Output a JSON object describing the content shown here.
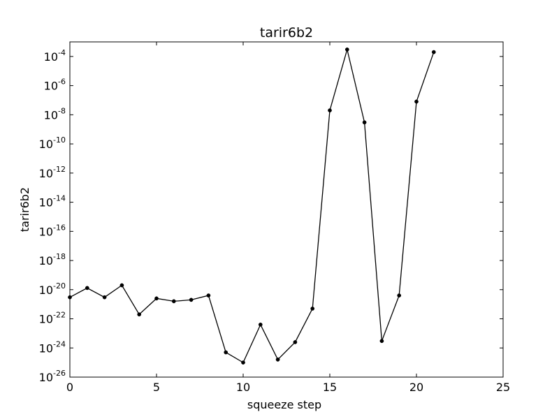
{
  "chart_data": {
    "type": "line",
    "title": "tarir6b2",
    "xlabel": "squeeze step",
    "ylabel": "tarir6b2",
    "y_scale": "log",
    "xlim": [
      0,
      25
    ],
    "ylim": [
      1e-26,
      0.001
    ],
    "grid": false,
    "x_ticks": [
      {
        "value": 0,
        "label": "0"
      },
      {
        "value": 5,
        "label": "5"
      },
      {
        "value": 10,
        "label": "10"
      },
      {
        "value": 15,
        "label": "15"
      },
      {
        "value": 20,
        "label": "20"
      },
      {
        "value": 25,
        "label": "25"
      }
    ],
    "y_ticks": [
      {
        "value": 1e-26,
        "base": "10",
        "exp": "-26"
      },
      {
        "value": 1e-24,
        "base": "10",
        "exp": "-24"
      },
      {
        "value": 1e-22,
        "base": "10",
        "exp": "-22"
      },
      {
        "value": 1e-20,
        "base": "10",
        "exp": "-20"
      },
      {
        "value": 1e-18,
        "base": "10",
        "exp": "-18"
      },
      {
        "value": 1e-16,
        "base": "10",
        "exp": "-16"
      },
      {
        "value": 1e-14,
        "base": "10",
        "exp": "-14"
      },
      {
        "value": 1e-12,
        "base": "10",
        "exp": "-12"
      },
      {
        "value": 1e-10,
        "base": "10",
        "exp": "-10"
      },
      {
        "value": 1e-08,
        "base": "10",
        "exp": "-8"
      },
      {
        "value": 1e-06,
        "base": "10",
        "exp": "-6"
      },
      {
        "value": 0.0001,
        "base": "10",
        "exp": "-4"
      }
    ],
    "series": [
      {
        "color": "#000000",
        "marker": "dot",
        "x": [
          0,
          1,
          2,
          3,
          4,
          5,
          6,
          7,
          8,
          9,
          10,
          11,
          12,
          13,
          14,
          15,
          16,
          17,
          18,
          19,
          20,
          21
        ],
        "y": [
          3e-21,
          1.3e-20,
          3e-21,
          2e-20,
          2e-22,
          2.5e-21,
          1.6e-21,
          2e-21,
          4e-21,
          5e-25,
          1e-25,
          4e-23,
          1.6e-25,
          2.5e-24,
          5e-22,
          2e-08,
          0.0003,
          3e-09,
          3e-24,
          4e-21,
          8e-08,
          0.0002
        ]
      }
    ]
  }
}
